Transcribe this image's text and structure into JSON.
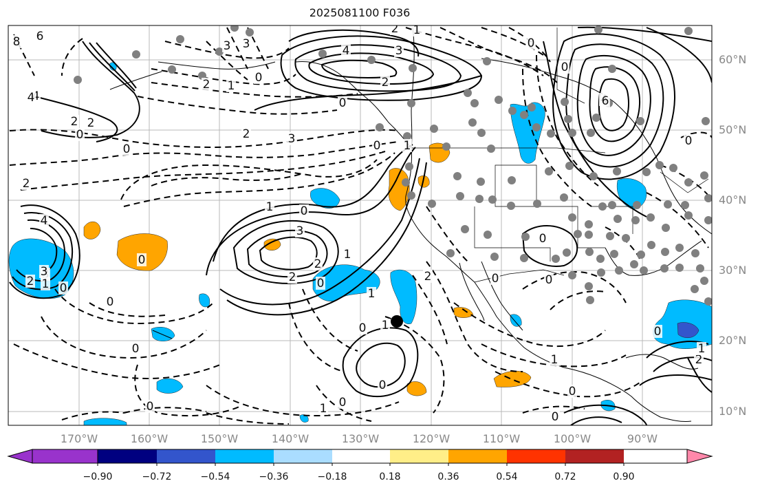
{
  "title": "2025081100 F036",
  "lat_labels": [
    "60°N",
    "50°N",
    "40°N",
    "30°N",
    "20°N",
    "10°N"
  ],
  "lon_labels": [
    "170°W",
    "160°W",
    "150°W",
    "140°W",
    "130°W",
    "120°W",
    "110°W",
    "100°W",
    "90°W"
  ],
  "colorbar": {
    "tick_labels": [
      "−0.90",
      "−0.72",
      "−0.54",
      "−0.36",
      "−0.18",
      "0.18",
      "0.36",
      "0.54",
      "0.72",
      "0.90"
    ],
    "colors": [
      "#9933cc",
      "#000080",
      "#3355cc",
      "#00bbff",
      "#aaddff",
      "#ffffff",
      "#ffee88",
      "#ffa500",
      "#ff3300",
      "#b22222",
      "#ff88aa"
    ]
  },
  "contour_labels": [
    {
      "text": "8"
    },
    {
      "text": "6"
    },
    {
      "text": "4"
    },
    {
      "text": "3"
    },
    {
      "text": "2"
    },
    {
      "text": "2"
    },
    {
      "text": "0"
    },
    {
      "text": "4"
    },
    {
      "text": "2"
    },
    {
      "text": "1"
    },
    {
      "text": "0"
    },
    {
      "text": "2"
    },
    {
      "text": "3"
    },
    {
      "text": "3"
    },
    {
      "text": "1"
    },
    {
      "text": "0"
    },
    {
      "text": "2"
    },
    {
      "text": "1"
    },
    {
      "text": "0"
    },
    {
      "text": "0"
    },
    {
      "text": "2"
    },
    {
      "text": "3"
    },
    {
      "text": "4"
    },
    {
      "text": "4"
    },
    {
      "text": "3"
    },
    {
      "text": "2"
    },
    {
      "text": "2"
    },
    {
      "text": "1"
    },
    {
      "text": "0"
    },
    {
      "text": "0"
    },
    {
      "text": "4"
    },
    {
      "text": "3"
    },
    {
      "text": "3"
    },
    {
      "text": "2"
    },
    {
      "text": "1"
    },
    {
      "text": "2"
    },
    {
      "text": "0"
    },
    {
      "text": "0"
    },
    {
      "text": "0"
    },
    {
      "text": "1"
    },
    {
      "text": "0"
    },
    {
      "text": "0"
    },
    {
      "text": "0"
    },
    {
      "text": "0"
    },
    {
      "text": "1"
    },
    {
      "text": "0"
    },
    {
      "text": "0"
    },
    {
      "text": "0"
    },
    {
      "text": "0"
    },
    {
      "text": "1"
    },
    {
      "text": "0"
    },
    {
      "text": "2"
    },
    {
      "text": "1"
    },
    {
      "text": "6"
    },
    {
      "text": "0"
    },
    {
      "text": "0"
    },
    {
      "text": "0"
    },
    {
      "text": "1"
    },
    {
      "text": "0"
    },
    {
      "text": "0"
    },
    {
      "text": "1"
    },
    {
      "text": "2"
    }
  ]
}
